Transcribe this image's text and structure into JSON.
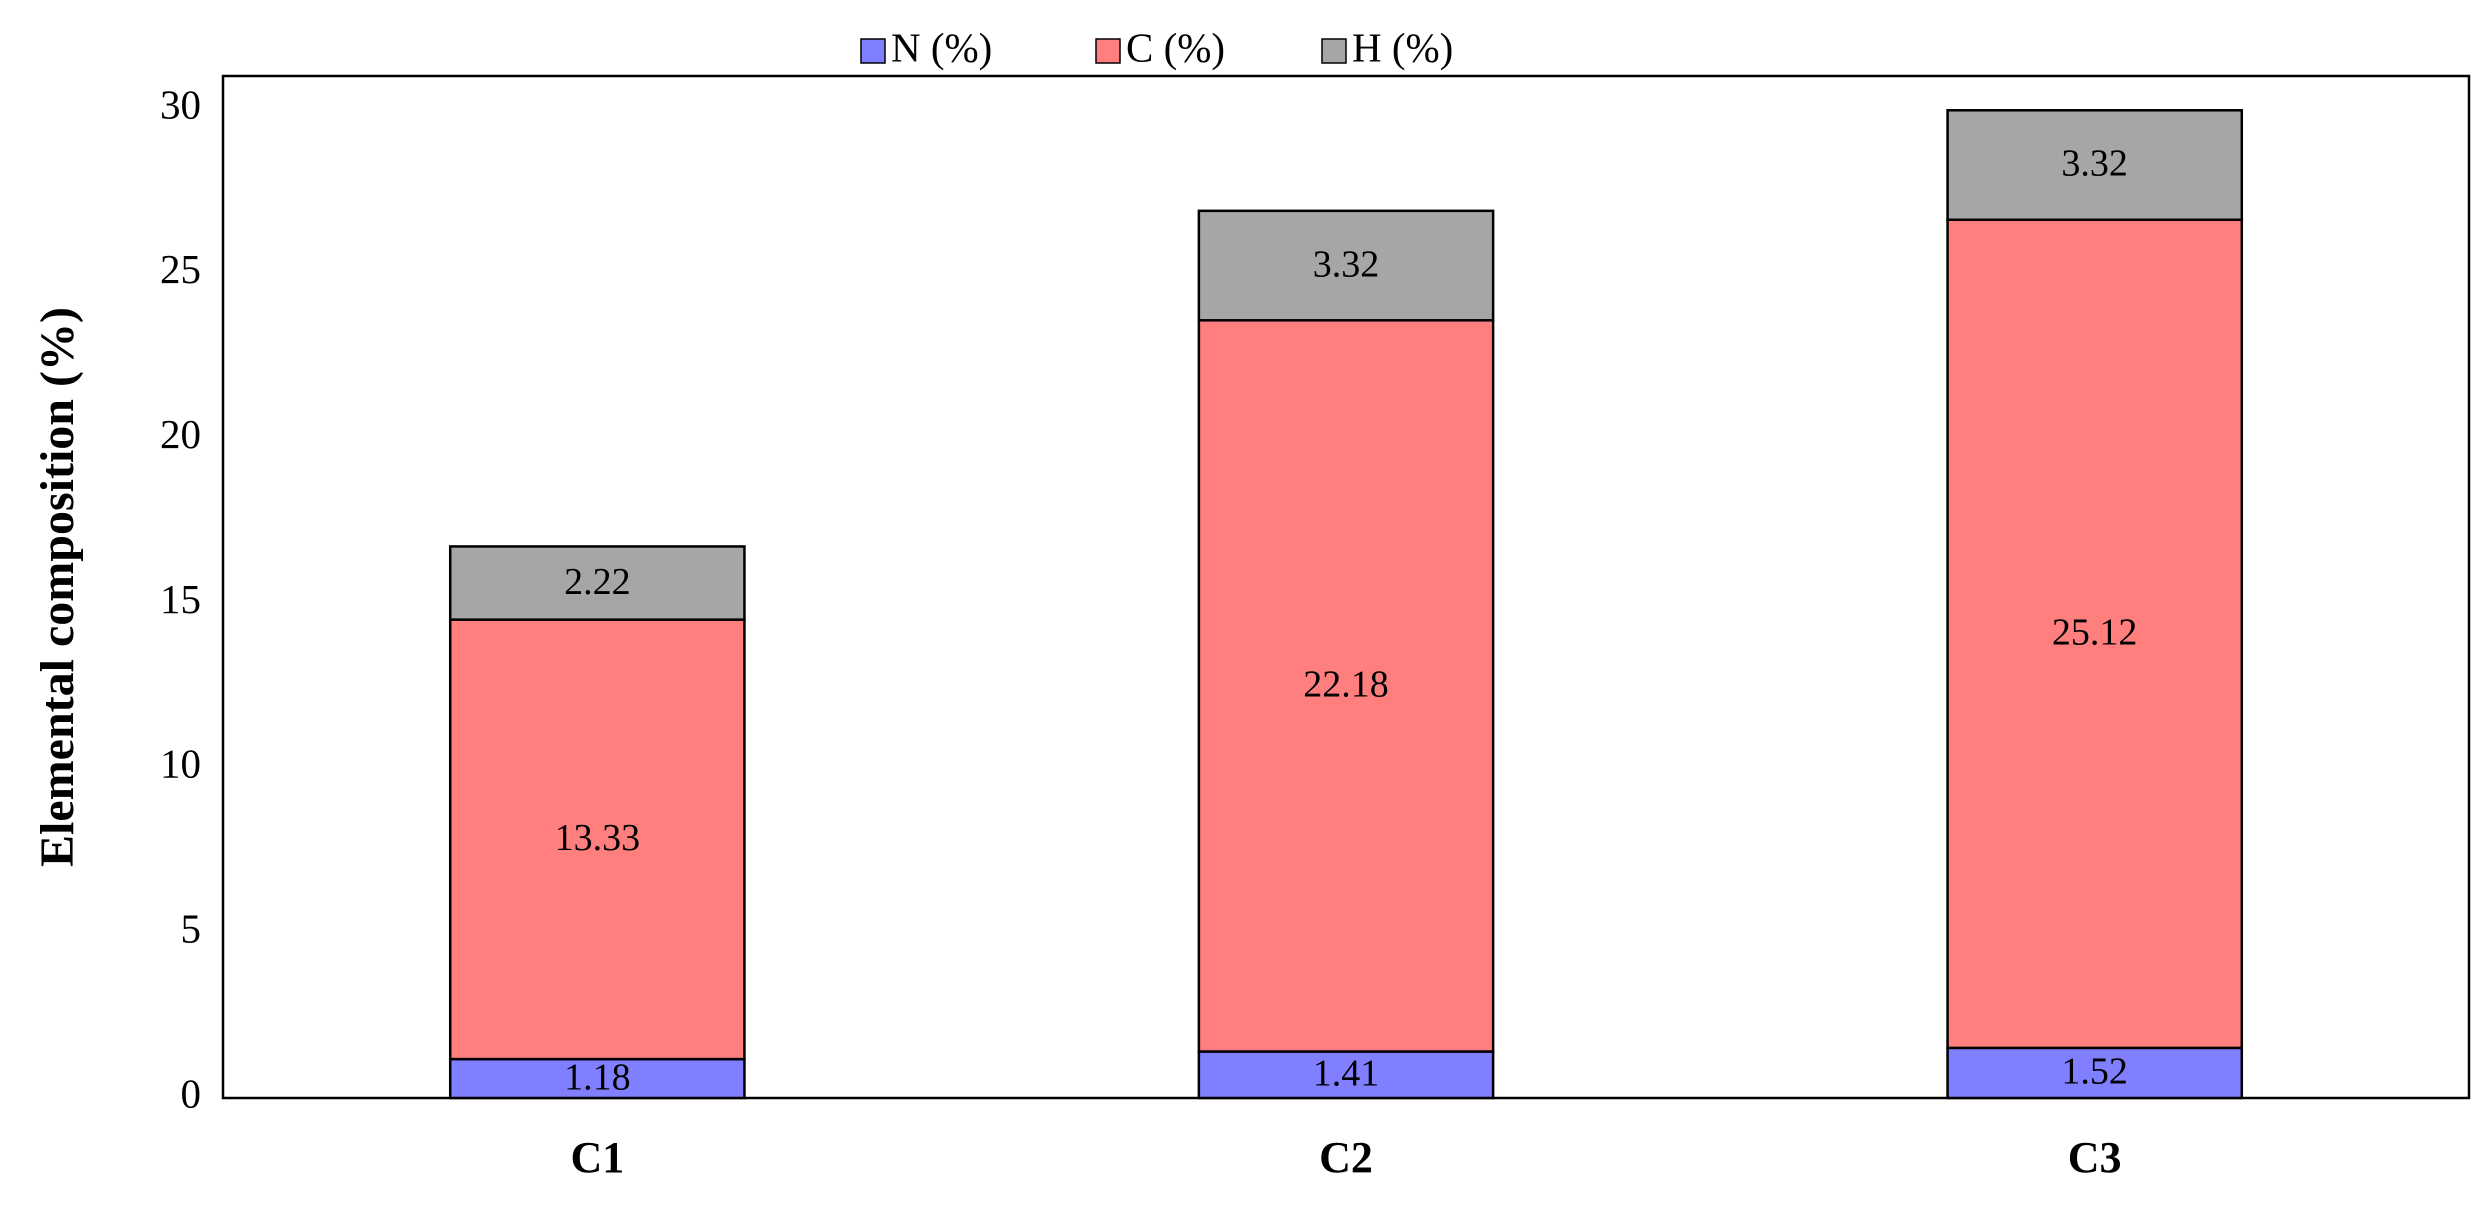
{
  "chart_data": {
    "type": "stacked_bar",
    "y_label": "Elemental composition (%)",
    "categories": [
      "C1",
      "C2",
      "C3"
    ],
    "series": [
      {
        "name": "N (%)",
        "color": "#7f7fff",
        "values": [
          1.18,
          1.41,
          1.52
        ]
      },
      {
        "name": "C (%)",
        "color": "#ff7f7f",
        "values": [
          13.33,
          22.18,
          25.12
        ]
      },
      {
        "name": "H (%)",
        "color": "#a6a6a6",
        "values": [
          2.22,
          3.32,
          3.32
        ]
      }
    ],
    "ylim": [
      0,
      31
    ],
    "yticks": [
      0,
      5,
      10,
      15,
      20,
      25,
      30
    ],
    "grid": false,
    "legend": "top",
    "data_labels": true
  }
}
